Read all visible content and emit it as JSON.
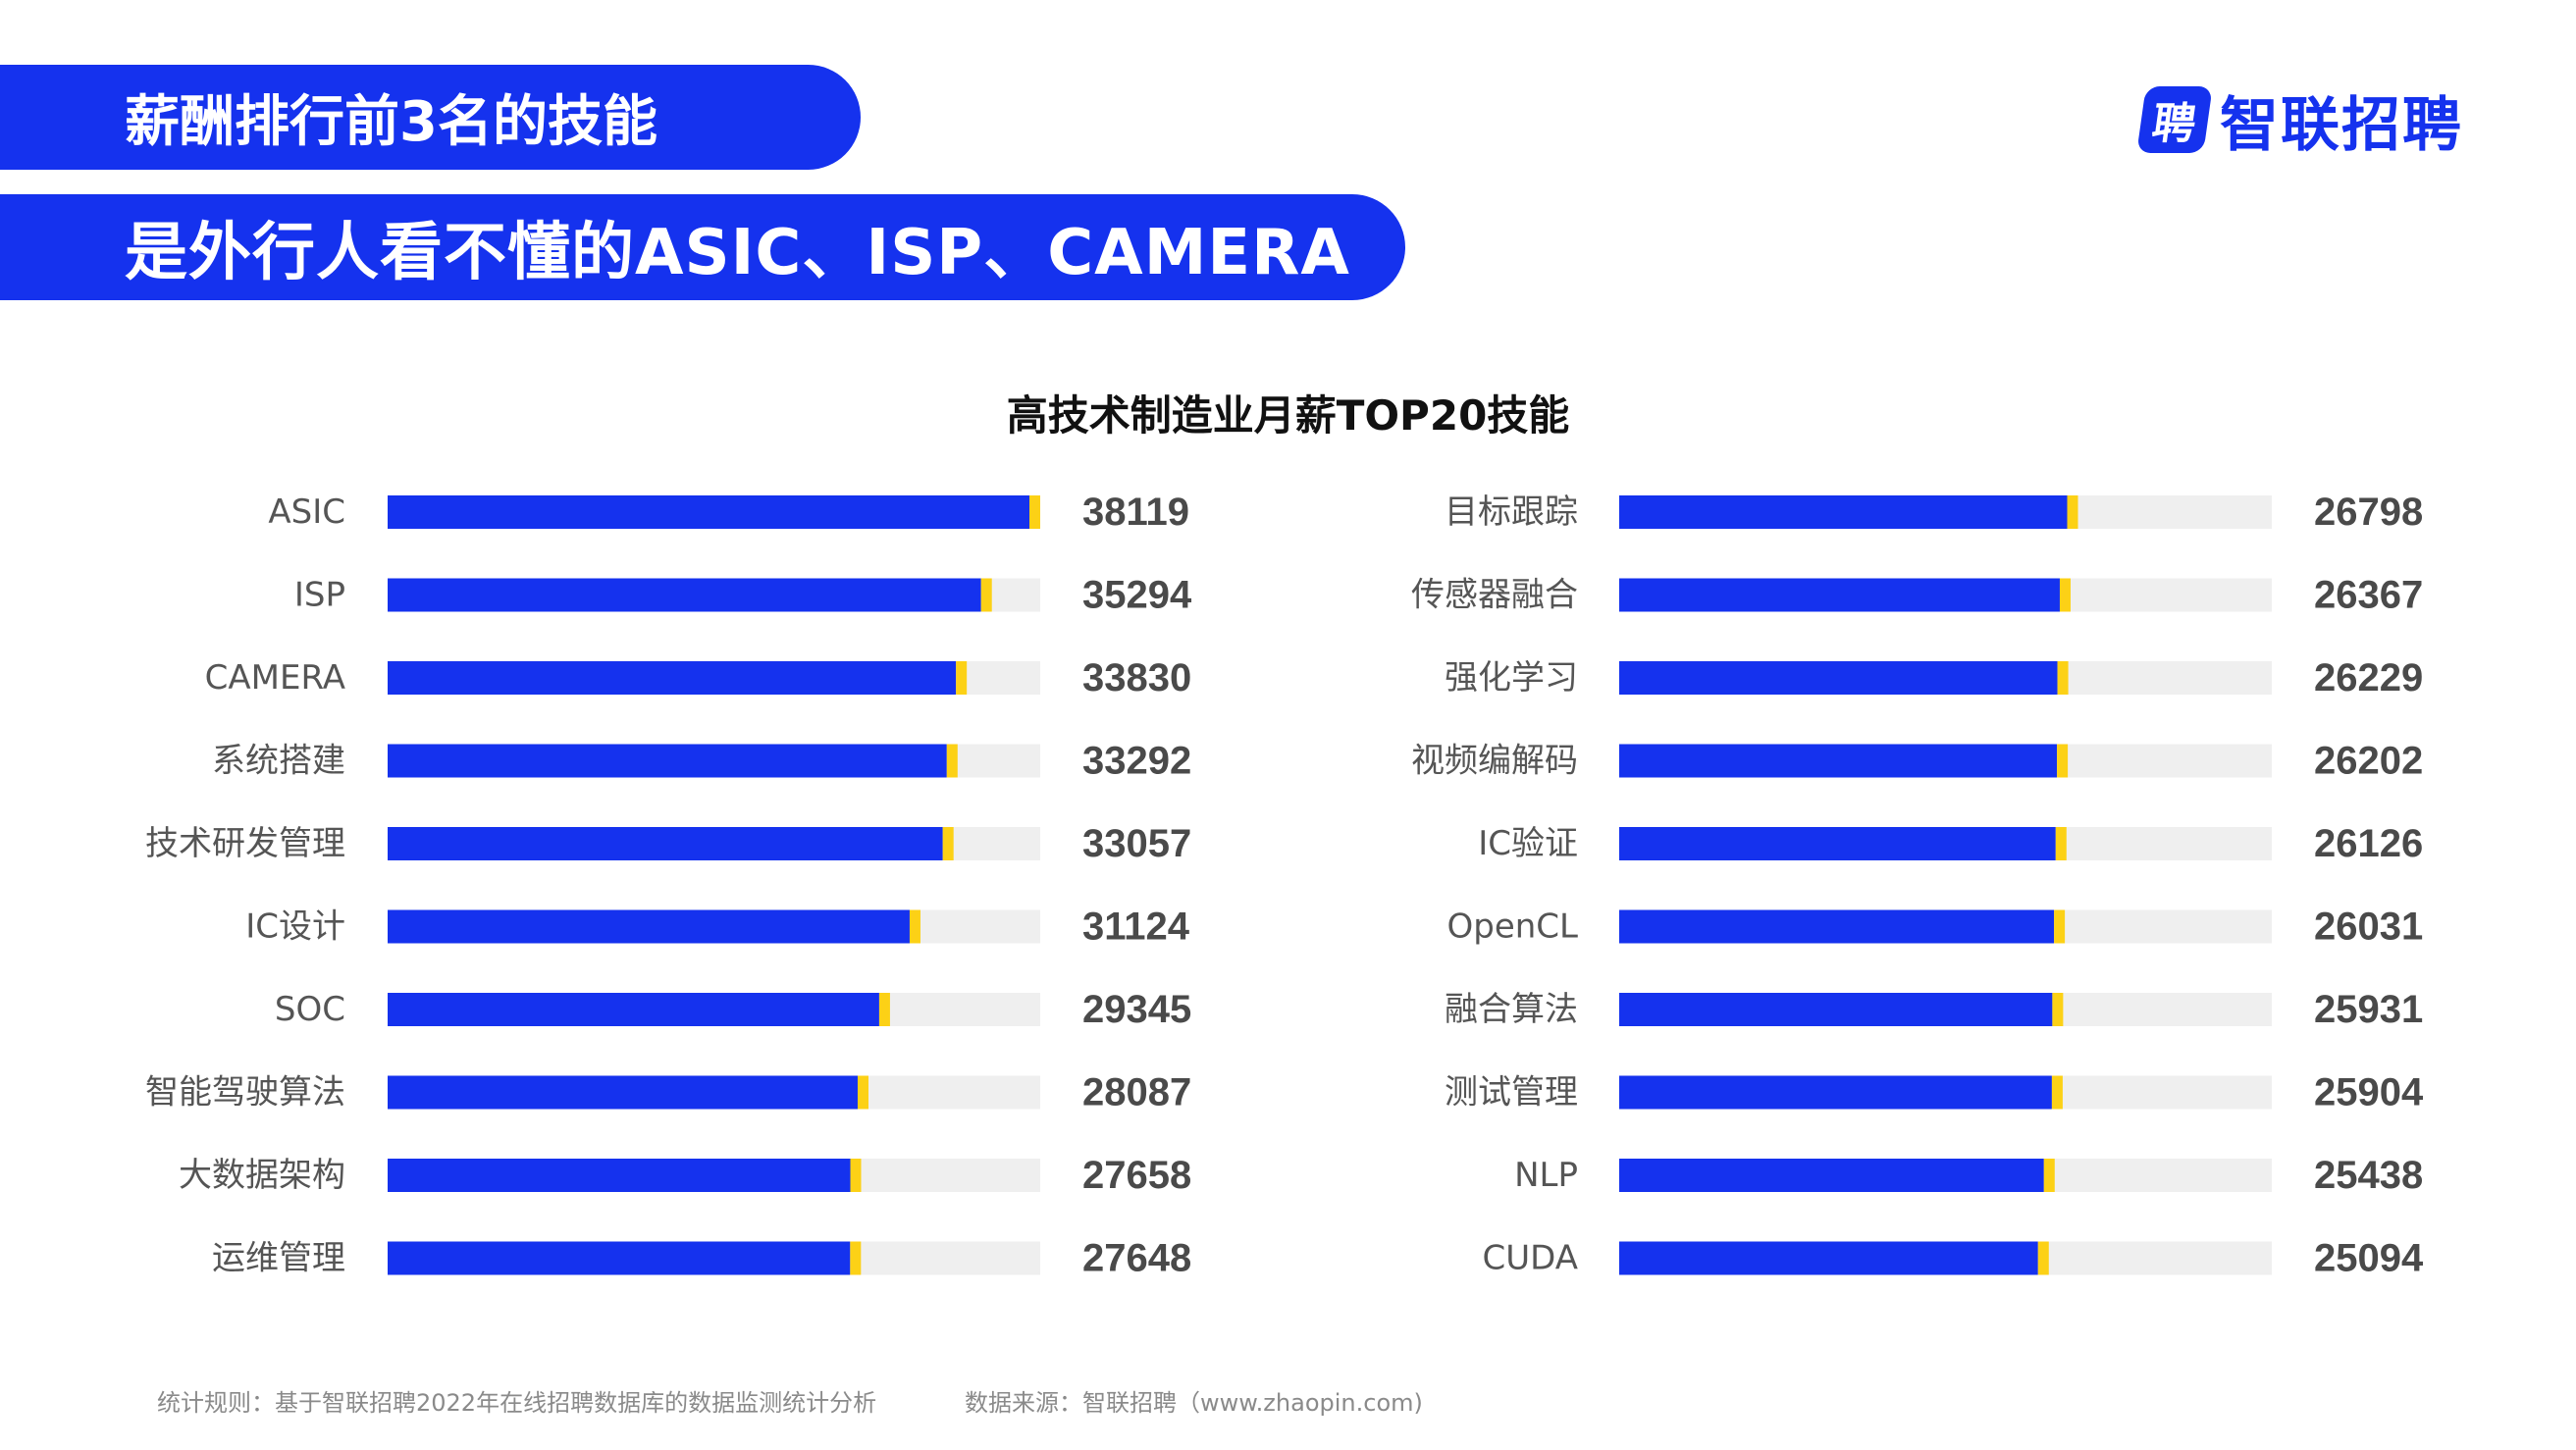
{
  "header": {
    "line1": "薪酬排行前3名的技能",
    "line2": "是外行人看不懂的ASIC、ISP、CAMERA"
  },
  "brand": {
    "badge": "聘",
    "name": "智联招聘"
  },
  "colors": {
    "bar": "#1532ee",
    "accent": "#fcd116",
    "track": "#efefef"
  },
  "chart_data": {
    "type": "bar",
    "orientation": "horizontal",
    "title": "高技术制造业月薪TOP20技能",
    "panels": [
      {
        "categories": [
          "ASIC",
          "ISP",
          "CAMERA",
          "系统搭建",
          "技术研发管理",
          "IC设计",
          "SOC",
          "智能驾驶算法",
          "大数据架构",
          "运维管理"
        ],
        "values": [
          38119,
          35294,
          33830,
          33292,
          33057,
          31124,
          29345,
          28087,
          27658,
          27648
        ]
      },
      {
        "categories": [
          "目标跟踪",
          "传感器融合",
          "强化学习",
          "视频编解码",
          "IC验证",
          "OpenCL",
          "融合算法",
          "测试管理",
          "NLP",
          "CUDA"
        ],
        "values": [
          26798,
          26367,
          26229,
          26202,
          26126,
          26031,
          25931,
          25904,
          25438,
          25094
        ]
      }
    ],
    "xlim": [
      0,
      38119
    ],
    "grid": false,
    "legend": "none"
  },
  "footer": {
    "rule": "统计规则：基于智联招聘2022年在线招聘数据库的数据监测统计分析",
    "source": "数据来源：智联招聘（www.zhaopin.com)"
  }
}
